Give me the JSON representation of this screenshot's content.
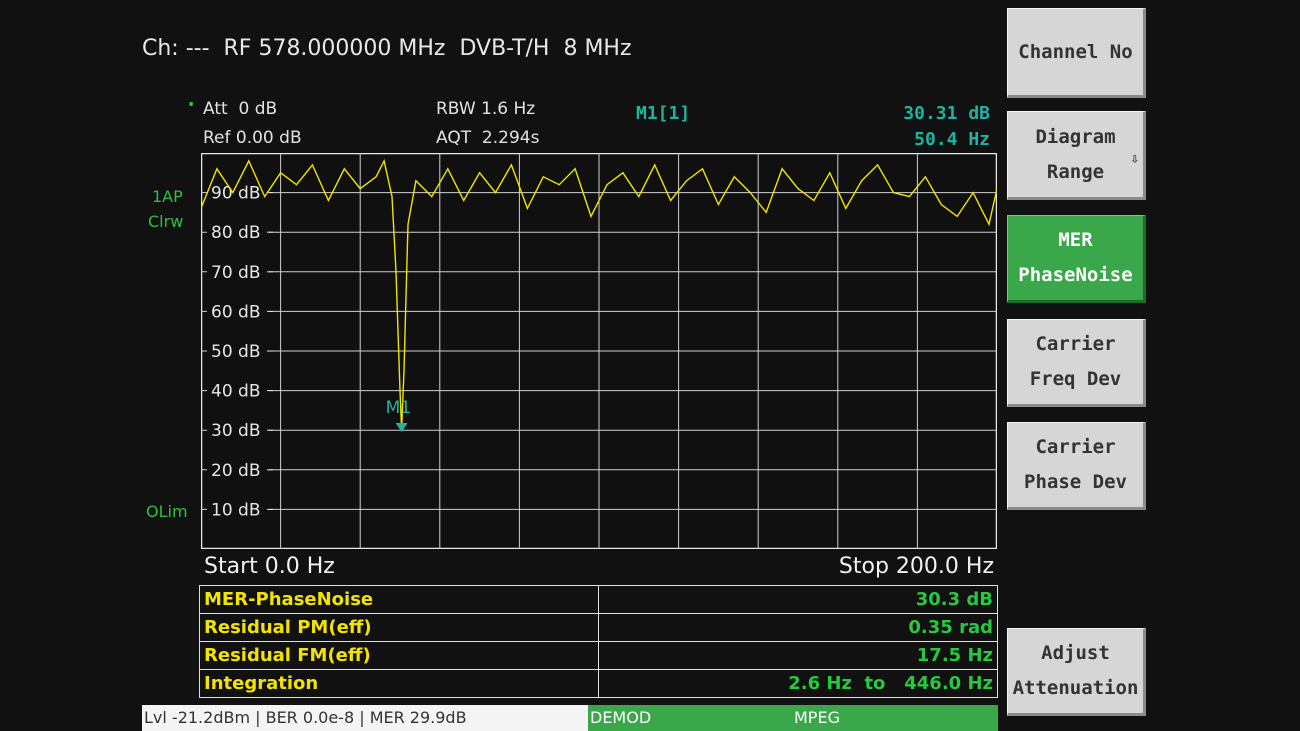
{
  "header": {
    "title": "Ch: ---  RF 578.000000 MHz  DVB-T/H  8 MHz"
  },
  "settings": {
    "att": "Att  0 dB",
    "ref": "Ref 0.00 dB",
    "rbw": "RBW 1.6 Hz",
    "aqt": "AQT  2.294s"
  },
  "marker": {
    "label": "M1[1]",
    "level": "30.31 dB",
    "freq": "50.4 Hz",
    "tag": "M1"
  },
  "trace_info": {
    "mode1": "1AP",
    "mode2": "Clrw",
    "limit": "OLim"
  },
  "chart_data": {
    "type": "line",
    "title": "",
    "xlabel": "",
    "ylabel": "",
    "xlim": [
      0,
      200
    ],
    "ylim": [
      0,
      100
    ],
    "ytick_labels": [
      "90 dB",
      "80 dB",
      "70 dB",
      "60 dB",
      "50 dB",
      "40 dB",
      "30 dB",
      "20 dB",
      "10 dB"
    ],
    "ytick_values": [
      90,
      80,
      70,
      60,
      50,
      40,
      30,
      20,
      10
    ],
    "grid": true,
    "series": [
      {
        "color": "#f2e400",
        "x": [
          0,
          4,
          8,
          12,
          16,
          20,
          24,
          28,
          32,
          36,
          40,
          44,
          46,
          48,
          49,
          50,
          50.4,
          51,
          52,
          54,
          58,
          62,
          66,
          70,
          74,
          78,
          82,
          86,
          90,
          94,
          98,
          102,
          106,
          110,
          114,
          118,
          122,
          126,
          130,
          134,
          138,
          142,
          146,
          150,
          154,
          158,
          162,
          166,
          170,
          174,
          178,
          182,
          186,
          190,
          194,
          198,
          200
        ],
        "values": [
          86,
          96,
          90,
          98,
          89,
          95,
          92,
          97,
          88,
          96,
          91,
          94,
          98,
          89,
          70,
          40,
          30.3,
          45,
          82,
          93,
          89,
          96,
          88,
          95,
          90,
          97,
          86,
          94,
          92,
          96,
          84,
          92,
          95,
          89,
          97,
          88,
          93,
          96,
          87,
          94,
          90,
          85,
          96,
          91,
          88,
          95,
          86,
          93,
          97,
          90,
          89,
          94,
          87,
          84,
          90,
          82,
          91
        ]
      }
    ],
    "marker": {
      "x": 50.4,
      "y": 30.31
    }
  },
  "freq_axis": {
    "start": "Start 0.0 Hz",
    "stop": "Stop 200.0 Hz"
  },
  "results": [
    {
      "label": "MER-PhaseNoise",
      "value": "30.3 dB"
    },
    {
      "label": "Residual PM(eff)",
      "value": "0.35 rad"
    },
    {
      "label": "Residual FM(eff)",
      "value": "17.5 Hz"
    }
  ],
  "integration": {
    "label": "Integration",
    "from": "2.6 Hz",
    "to_word": "to",
    "to": "446.0 Hz"
  },
  "status_bar": {
    "text": "Lvl -21.2dBm | BER 0.0e-8 | MER 29.9dB",
    "demod": "DEMOD",
    "mpeg": "MPEG"
  },
  "softkeys": {
    "channel_no": "Channel No",
    "diagram_range_1": "Diagram",
    "diagram_range_2": "Range",
    "mer_1": "MER",
    "mer_2": "PhaseNoise",
    "cfd_1": "Carrier",
    "cfd_2": "Freq Dev",
    "cpd_1": "Carrier",
    "cpd_2": "Phase Dev",
    "adj_1": "Adjust",
    "adj_2": "Attenuation"
  },
  "colors": {
    "trace": "#f2e400",
    "marker": "#1fb3a2",
    "active_softkey": "#3aa84a",
    "grid": "#d0d0d0"
  },
  "icons": {
    "scroll_arrow": "down-arrow-icon"
  }
}
